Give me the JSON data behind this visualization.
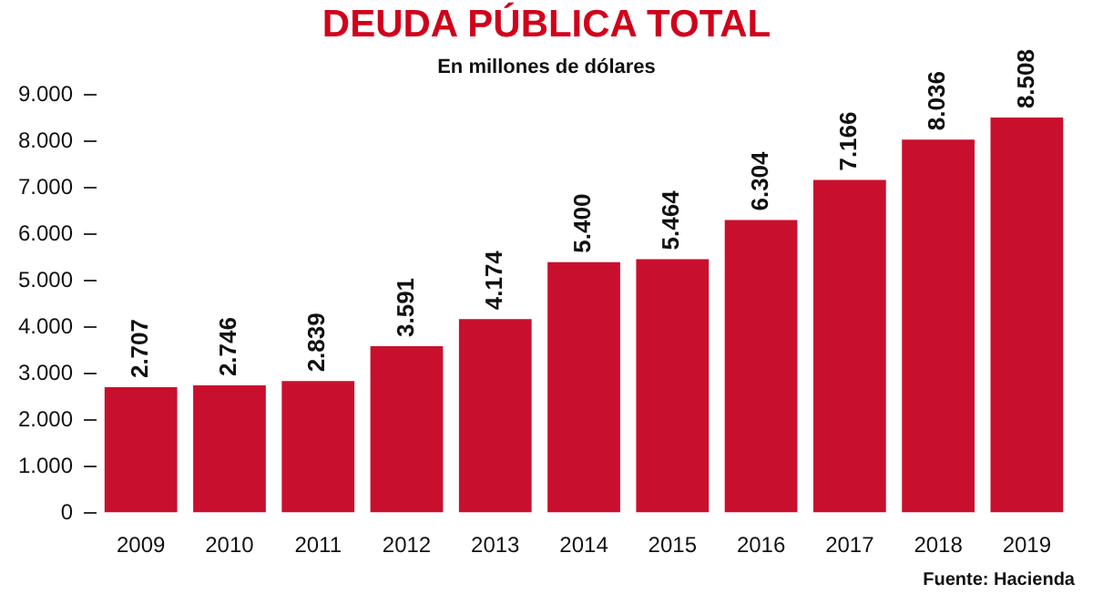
{
  "chart_data": {
    "type": "bar",
    "title": "DEUDA PÚBLICA TOTAL",
    "subtitle": "En millones de dólares",
    "categories": [
      "2009",
      "2010",
      "2011",
      "2012",
      "2013",
      "2014",
      "2015",
      "2016",
      "2017",
      "2018",
      "2019"
    ],
    "values": [
      2707,
      2746,
      2839,
      3591,
      4174,
      5400,
      5464,
      6304,
      7166,
      8036,
      8508
    ],
    "value_labels": [
      "2.707",
      "2.746",
      "2.839",
      "3.591",
      "4.174",
      "5.400",
      "5.464",
      "6.304",
      "7.166",
      "8.036",
      "8.508"
    ],
    "color": "#c8102e",
    "ylim": [
      0,
      9000
    ],
    "yticks": [
      {
        "value": 0,
        "label": "0"
      },
      {
        "value": 1000,
        "label": "1.000"
      },
      {
        "value": 2000,
        "label": "2.000"
      },
      {
        "value": 3000,
        "label": "3.000"
      },
      {
        "value": 4000,
        "label": "4.000"
      },
      {
        "value": 5000,
        "label": "5.000"
      },
      {
        "value": 6000,
        "label": "6.000"
      },
      {
        "value": 7000,
        "label": "7.000"
      },
      {
        "value": 8000,
        "label": "8.000"
      },
      {
        "value": 9000,
        "label": "9.000"
      }
    ],
    "annotations": [
      "Fuente: Hacienda"
    ]
  }
}
